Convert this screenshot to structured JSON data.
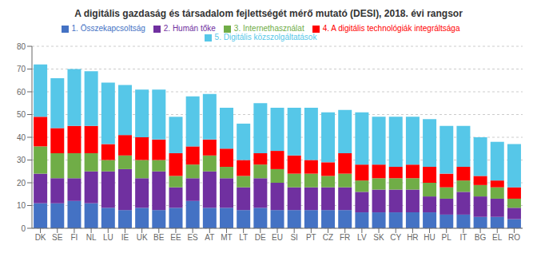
{
  "chart_data": {
    "type": "bar",
    "title": "A digitális gazdaság és társadalom fejlettségét mérő mutató (DESI), 2018. évi rangsor",
    "stacked": true,
    "categories": [
      "DK",
      "SE",
      "FI",
      "NL",
      "LU",
      "IE",
      "UK",
      "BE",
      "EE",
      "ES",
      "AT",
      "MT",
      "LT",
      "DE",
      "EU",
      "SI",
      "PT",
      "CZ",
      "FR",
      "LV",
      "SK",
      "CY",
      "HR",
      "HU",
      "PL",
      "IT",
      "BG",
      "EL",
      "RO"
    ],
    "series": [
      {
        "name": "1. Összekapcsoltság",
        "color": "#4472C4",
        "values": [
          11,
          11,
          12,
          11,
          9,
          8,
          9,
          8,
          9,
          12,
          9,
          9,
          8,
          9,
          8,
          8,
          8,
          8,
          8,
          7,
          7,
          7,
          7,
          7,
          6,
          6,
          5,
          5,
          4
        ]
      },
      {
        "name": "2. Humán tőke",
        "color": "#7030A0",
        "values": [
          13,
          11,
          10,
          14,
          16,
          18,
          13,
          17,
          9,
          10,
          16,
          13,
          10,
          13,
          12,
          10,
          10,
          10,
          10,
          9,
          10,
          10,
          10,
          7,
          7,
          10,
          9,
          8,
          5
        ]
      },
      {
        "name": "3. Internethasználat",
        "color": "#70AD47",
        "values": [
          12,
          11,
          11,
          8,
          5,
          6,
          8,
          5,
          5,
          6,
          7,
          5,
          5,
          6,
          6,
          6,
          6,
          5,
          6,
          5,
          5,
          5,
          5,
          6,
          5,
          5,
          5,
          5,
          4
        ]
      },
      {
        "name": "4. A digitális technológiák integráltsága",
        "color": "#FF0000",
        "values": [
          13,
          11,
          12,
          12,
          7,
          9,
          10,
          9,
          10,
          8,
          7,
          8,
          7,
          5,
          8,
          8,
          6,
          6,
          9,
          7,
          6,
          5,
          6,
          7,
          6,
          6,
          4,
          3,
          5
        ]
      },
      {
        "name": "5. Digitális közszolgáltatások",
        "color": "#56C7E8",
        "values": [
          23,
          22,
          25,
          24,
          27,
          22,
          21,
          22,
          16,
          22,
          20,
          18,
          16,
          22,
          19,
          21,
          23,
          22,
          19,
          23,
          21,
          22,
          21,
          21,
          21,
          18,
          17,
          17,
          19
        ]
      }
    ],
    "ylim": [
      0,
      80
    ],
    "yticks": [
      0,
      10,
      20,
      30,
      40,
      50,
      60,
      70,
      80
    ],
    "grid": true,
    "legend": "top"
  }
}
